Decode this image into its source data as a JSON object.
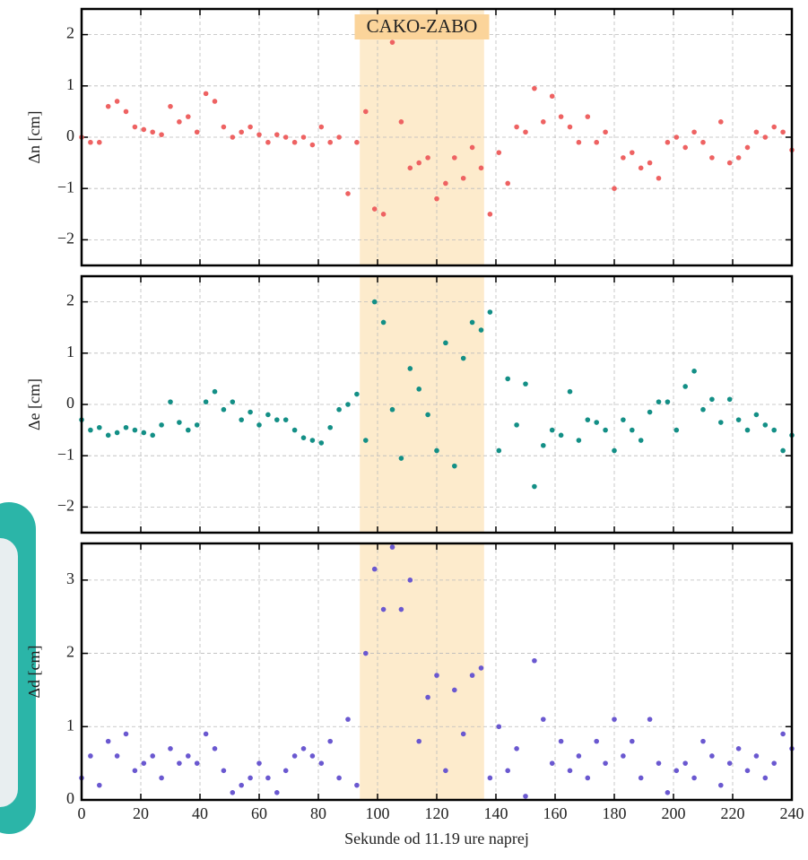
{
  "chart_data": [
    {
      "type": "scatter",
      "ylabel": "Δn [cm]",
      "annotation": "CAKO-ZABO",
      "color": "#ee6262",
      "highlight": [
        94,
        136
      ],
      "highlight_color": "#fdebcc",
      "xlim": [
        0,
        240
      ],
      "xticks": [
        0,
        20,
        40,
        60,
        80,
        100,
        120,
        140,
        160,
        180,
        200,
        220,
        240
      ],
      "ylim": [
        -2.5,
        2.5
      ],
      "yticks": [
        -2,
        -1,
        0,
        1,
        2
      ],
      "grid": true,
      "x": [
        0,
        3,
        6,
        9,
        12,
        15,
        18,
        21,
        24,
        27,
        30,
        33,
        36,
        39,
        42,
        45,
        48,
        51,
        54,
        57,
        60,
        63,
        66,
        69,
        72,
        75,
        78,
        81,
        84,
        87,
        90,
        93,
        96,
        99,
        102,
        105,
        108,
        111,
        114,
        117,
        120,
        123,
        126,
        129,
        132,
        135,
        138,
        141,
        144,
        147,
        150,
        153,
        156,
        159,
        162,
        165,
        168,
        171,
        174,
        177,
        180,
        183,
        186,
        189,
        192,
        195,
        198,
        201,
        204,
        207,
        210,
        213,
        216,
        219,
        222,
        225,
        228,
        231,
        234,
        237,
        240
      ],
      "values": [
        0,
        -0.1,
        -0.1,
        0.6,
        0.7,
        0.5,
        0.2,
        0.15,
        0.1,
        0.05,
        0.6,
        0.3,
        0.4,
        0.1,
        0.85,
        0.7,
        0.2,
        0.0,
        0.1,
        0.2,
        0.05,
        -0.1,
        0.05,
        0.0,
        -0.1,
        0.0,
        -0.15,
        0.2,
        -0.1,
        0.0,
        -1.1,
        -0.1,
        0.5,
        -1.4,
        -1.5,
        1.85,
        0.3,
        -0.6,
        -0.5,
        -0.4,
        -1.2,
        -0.9,
        -0.4,
        -0.8,
        -0.2,
        -0.6,
        -1.5,
        -0.3,
        -0.9,
        0.2,
        0.1,
        0.95,
        0.3,
        0.8,
        0.4,
        0.2,
        -0.1,
        0.4,
        -0.1,
        0.1,
        -1.0,
        -0.4,
        -0.3,
        -0.6,
        -0.5,
        -0.8,
        -0.1,
        0.0,
        -0.2,
        0.1,
        -0.1,
        -0.4,
        0.3,
        -0.5,
        -0.4,
        -0.2,
        0.1,
        0.0,
        0.2,
        0.1,
        -0.25
      ]
    },
    {
      "type": "scatter",
      "ylabel": "Δe [cm]",
      "color": "#138f86",
      "highlight": [
        94,
        136
      ],
      "highlight_color": "#fdebcc",
      "xlim": [
        0,
        240
      ],
      "xticks": [
        0,
        20,
        40,
        60,
        80,
        100,
        120,
        140,
        160,
        180,
        200,
        220,
        240
      ],
      "ylim": [
        -2.5,
        2.5
      ],
      "yticks": [
        -2,
        -1,
        0,
        1,
        2
      ],
      "grid": true,
      "x": [
        0,
        3,
        6,
        9,
        12,
        15,
        18,
        21,
        24,
        27,
        30,
        33,
        36,
        39,
        42,
        45,
        48,
        51,
        54,
        57,
        60,
        63,
        66,
        69,
        72,
        75,
        78,
        81,
        84,
        87,
        90,
        93,
        96,
        99,
        102,
        105,
        108,
        111,
        114,
        117,
        120,
        123,
        126,
        129,
        132,
        135,
        138,
        141,
        144,
        147,
        150,
        153,
        156,
        159,
        162,
        165,
        168,
        171,
        174,
        177,
        180,
        183,
        186,
        189,
        192,
        195,
        198,
        201,
        204,
        207,
        210,
        213,
        216,
        219,
        222,
        225,
        228,
        231,
        234,
        237,
        240
      ],
      "values": [
        -0.3,
        -0.5,
        -0.45,
        -0.6,
        -0.55,
        -0.45,
        -0.5,
        -0.55,
        -0.6,
        -0.4,
        0.05,
        -0.35,
        -0.5,
        -0.4,
        0.05,
        0.25,
        -0.1,
        0.05,
        -0.3,
        -0.15,
        -0.4,
        -0.2,
        -0.3,
        -0.3,
        -0.5,
        -0.65,
        -0.7,
        -0.75,
        -0.45,
        -0.1,
        0.0,
        0.2,
        -0.7,
        2.0,
        1.6,
        -0.1,
        -1.05,
        0.7,
        0.3,
        -0.2,
        -0.9,
        1.2,
        -1.2,
        0.9,
        1.6,
        1.45,
        1.8,
        -0.9,
        0.5,
        -0.4,
        0.4,
        -1.6,
        -0.8,
        -0.5,
        -0.6,
        0.25,
        -0.7,
        -0.3,
        -0.35,
        -0.5,
        -0.9,
        -0.3,
        -0.5,
        -0.7,
        -0.15,
        0.05,
        0.05,
        -0.5,
        0.35,
        0.65,
        -0.1,
        0.1,
        -0.35,
        0.1,
        -0.3,
        -0.5,
        -0.2,
        -0.4,
        -0.5,
        -0.9,
        -0.6
      ]
    },
    {
      "type": "scatter",
      "ylabel": "Δd [cm]",
      "xlabel": "Sekunde od 11.19 ure naprej",
      "color": "#6a58d0",
      "highlight": [
        94,
        136
      ],
      "highlight_color": "#fdebcc",
      "xlim": [
        0,
        240
      ],
      "xticks": [
        0,
        20,
        40,
        60,
        80,
        100,
        120,
        140,
        160,
        180,
        200,
        220,
        240
      ],
      "ylim": [
        0,
        3.5
      ],
      "yticks": [
        0,
        1,
        2,
        3
      ],
      "grid": true,
      "x": [
        0,
        3,
        6,
        9,
        12,
        15,
        18,
        21,
        24,
        27,
        30,
        33,
        36,
        39,
        42,
        45,
        48,
        51,
        54,
        57,
        60,
        63,
        66,
        69,
        72,
        75,
        78,
        81,
        84,
        87,
        90,
        93,
        96,
        99,
        102,
        105,
        108,
        111,
        114,
        117,
        120,
        123,
        126,
        129,
        132,
        135,
        138,
        141,
        144,
        147,
        150,
        153,
        156,
        159,
        162,
        165,
        168,
        171,
        174,
        177,
        180,
        183,
        186,
        189,
        192,
        195,
        198,
        201,
        204,
        207,
        210,
        213,
        216,
        219,
        222,
        225,
        228,
        231,
        234,
        237,
        240
      ],
      "values": [
        0.3,
        0.6,
        0.2,
        0.8,
        0.6,
        0.9,
        0.4,
        0.5,
        0.6,
        0.3,
        0.7,
        0.5,
        0.6,
        0.5,
        0.9,
        0.7,
        0.4,
        0.1,
        0.2,
        0.3,
        0.5,
        0.3,
        0.1,
        0.4,
        0.6,
        0.7,
        0.6,
        0.5,
        0.8,
        0.3,
        1.1,
        0.2,
        2.0,
        3.15,
        2.6,
        3.45,
        2.6,
        3.0,
        0.8,
        1.4,
        1.7,
        0.4,
        1.5,
        0.9,
        1.7,
        1.8,
        0.3,
        1.0,
        0.4,
        0.7,
        0.05,
        1.9,
        1.1,
        0.5,
        0.8,
        0.4,
        0.6,
        0.3,
        0.8,
        0.5,
        1.1,
        0.6,
        0.8,
        0.3,
        1.1,
        0.5,
        0.1,
        0.4,
        0.5,
        0.3,
        0.8,
        0.6,
        0.2,
        0.5,
        0.7,
        0.4,
        0.6,
        0.3,
        0.5,
        0.9,
        0.7
      ]
    }
  ]
}
